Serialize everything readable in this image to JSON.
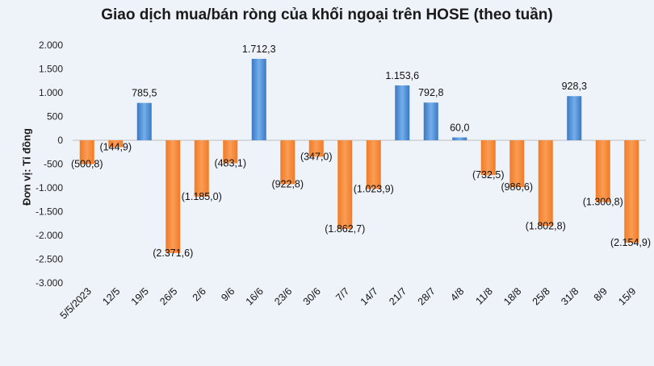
{
  "chart_data": {
    "type": "bar",
    "title": "Giao dịch mua/bán ròng của khối ngoại trên HOSE (theo tuần)",
    "ylabel": "Đơn vị: Tỉ đồng",
    "xlabel": "",
    "ylim": [
      -3000,
      2000
    ],
    "yticks": [
      2000,
      1500,
      1000,
      500,
      0,
      -500,
      -1000,
      -1500,
      -2000,
      -2500,
      -3000
    ],
    "ytick_labels": [
      "2.000",
      "1.500",
      "1.000",
      "500",
      "0",
      "-500",
      "-1.000",
      "-1.500",
      "-2.000",
      "-2.500",
      "-3.000"
    ],
    "categories": [
      "5/5/2023",
      "12/5",
      "19/5",
      "26/5",
      "2/6",
      "9/6",
      "16/6",
      "23/6",
      "30/6",
      "7/7",
      "14/7",
      "21/7",
      "28/7",
      "4/8",
      "11/8",
      "18/8",
      "25/8",
      "31/8",
      "8/9",
      "15/9"
    ],
    "values": [
      -500.8,
      -144.9,
      785.5,
      -2371.6,
      -1185.0,
      -483.1,
      1712.3,
      -922.8,
      -347.0,
      -1862.7,
      -1023.9,
      1153.6,
      792.8,
      60.0,
      -732.5,
      -986.6,
      -1802.8,
      928.3,
      -1300.8,
      -2154.9
    ],
    "data_labels": [
      "(500,8)",
      "(144,9)",
      "785,5",
      "(2.371,6)",
      "(1.185,0)",
      "(483,1)",
      "1.712,3",
      "(922,8)",
      "(347,0)",
      "(1.862,7)",
      "(1.023,9)",
      "1.153,6",
      "792,8",
      "60,0",
      "(732,5)",
      "(986,6)",
      "(1.802,8)",
      "928,3",
      "(1.300,8)",
      "(2.154,9)"
    ],
    "colors": {
      "positive": "#4f8fd6",
      "negative": "#f08a3c"
    },
    "grid": false,
    "legend": "none"
  }
}
